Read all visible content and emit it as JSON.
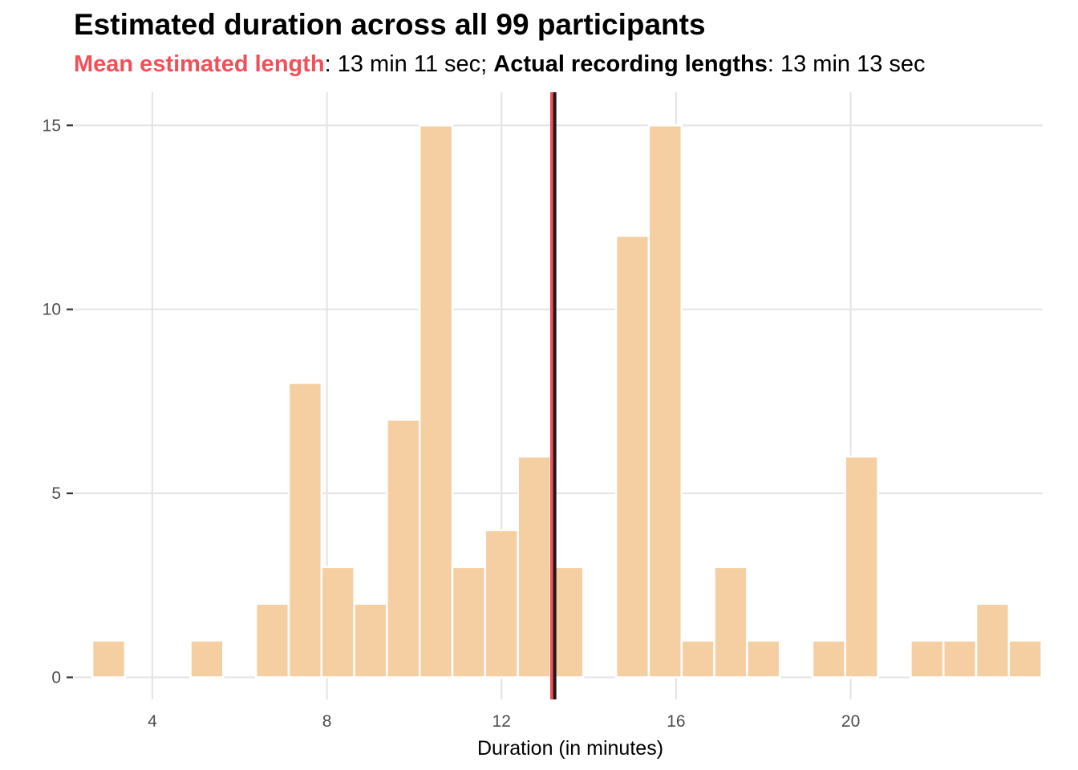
{
  "title": "Estimated duration across all 99 participants",
  "subtitle": {
    "mean_label": "Mean estimated length",
    "mean_value": ": 13 min 11 sec; ",
    "actual_label": "Actual recording lengths",
    "actual_value": ": 13 min 13 sec"
  },
  "colors": {
    "bar_fill": "#f5cfa1",
    "mean_line": "#f0505a",
    "actual_line": "#1a1a1a",
    "grid": "#e5e5e5"
  },
  "chart_data": {
    "type": "bar",
    "title": "Estimated duration across all 99 participants",
    "xlabel": "Duration (in minutes)",
    "ylabel": "",
    "xlim": [
      2.2,
      24.4
    ],
    "ylim": [
      -0.6,
      15.9
    ],
    "x_ticks": [
      4,
      8,
      12,
      16,
      20
    ],
    "y_ticks": [
      0,
      5,
      10,
      15
    ],
    "grid": true,
    "bin_width": 0.75,
    "bins": [
      {
        "center": 3.0,
        "count": 1
      },
      {
        "center": 3.75,
        "count": 0
      },
      {
        "center": 4.5,
        "count": 0
      },
      {
        "center": 5.25,
        "count": 1
      },
      {
        "center": 6.0,
        "count": 0
      },
      {
        "center": 6.75,
        "count": 2
      },
      {
        "center": 7.5,
        "count": 8
      },
      {
        "center": 8.25,
        "count": 3
      },
      {
        "center": 9.0,
        "count": 2
      },
      {
        "center": 9.75,
        "count": 7
      },
      {
        "center": 10.5,
        "count": 15
      },
      {
        "center": 11.25,
        "count": 3
      },
      {
        "center": 12.0,
        "count": 4
      },
      {
        "center": 12.75,
        "count": 6
      },
      {
        "center": 13.5,
        "count": 3
      },
      {
        "center": 14.25,
        "count": 0
      },
      {
        "center": 15.0,
        "count": 12
      },
      {
        "center": 15.75,
        "count": 15
      },
      {
        "center": 16.5,
        "count": 1
      },
      {
        "center": 17.25,
        "count": 3
      },
      {
        "center": 18.0,
        "count": 1
      },
      {
        "center": 18.75,
        "count": 0
      },
      {
        "center": 19.5,
        "count": 1
      },
      {
        "center": 20.25,
        "count": 6
      },
      {
        "center": 21.0,
        "count": 0
      },
      {
        "center": 21.75,
        "count": 1
      },
      {
        "center": 22.5,
        "count": 1
      },
      {
        "center": 23.25,
        "count": 2
      },
      {
        "center": 24.0,
        "count": 1
      }
    ],
    "mean_estimated_minutes": 13.18,
    "actual_recording_minutes": 13.22
  }
}
